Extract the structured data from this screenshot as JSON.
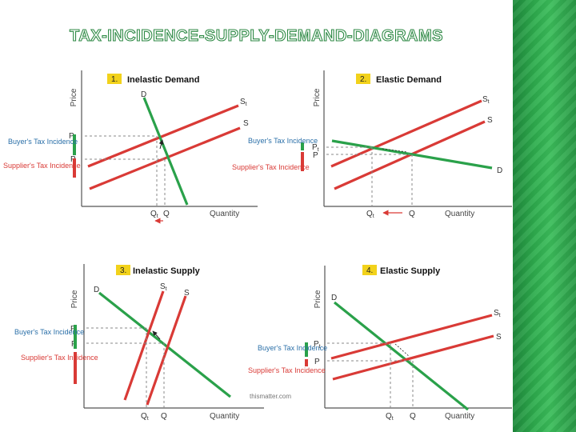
{
  "slide": {
    "title": "TAX-INCIDENCE-SUPPLY-DEMAND-DIAGRAMS"
  },
  "colors": {
    "demand": "#2aa14a",
    "supply": "#d93a36",
    "buyer_bar": "#2aa14a",
    "supplier_bar": "#d93a36",
    "badge": "#f2d21b",
    "accent_bar": "#2fae4f"
  },
  "common": {
    "price_axis": "Price",
    "quantity_axis": "Quantity",
    "buyers_tax_incidence": "Buyer's Tax Incidence",
    "suppliers_tax_incidence": "Supplier's Tax Incidence",
    "p_label": "P",
    "pt_label": "P",
    "t_sub": "t",
    "q_label": "Q",
    "qt_label": "Q",
    "d_label": "D",
    "s_label": "S",
    "st_label": "S"
  },
  "diagrams": [
    {
      "number": "1.",
      "title": "Inelastic Demand"
    },
    {
      "number": "2.",
      "title": "Elastic Demand"
    },
    {
      "number": "3.",
      "title": "Inelastic Supply"
    },
    {
      "number": "4.",
      "title": "Elastic Supply"
    }
  ],
  "watermark": "thismatter.com"
}
